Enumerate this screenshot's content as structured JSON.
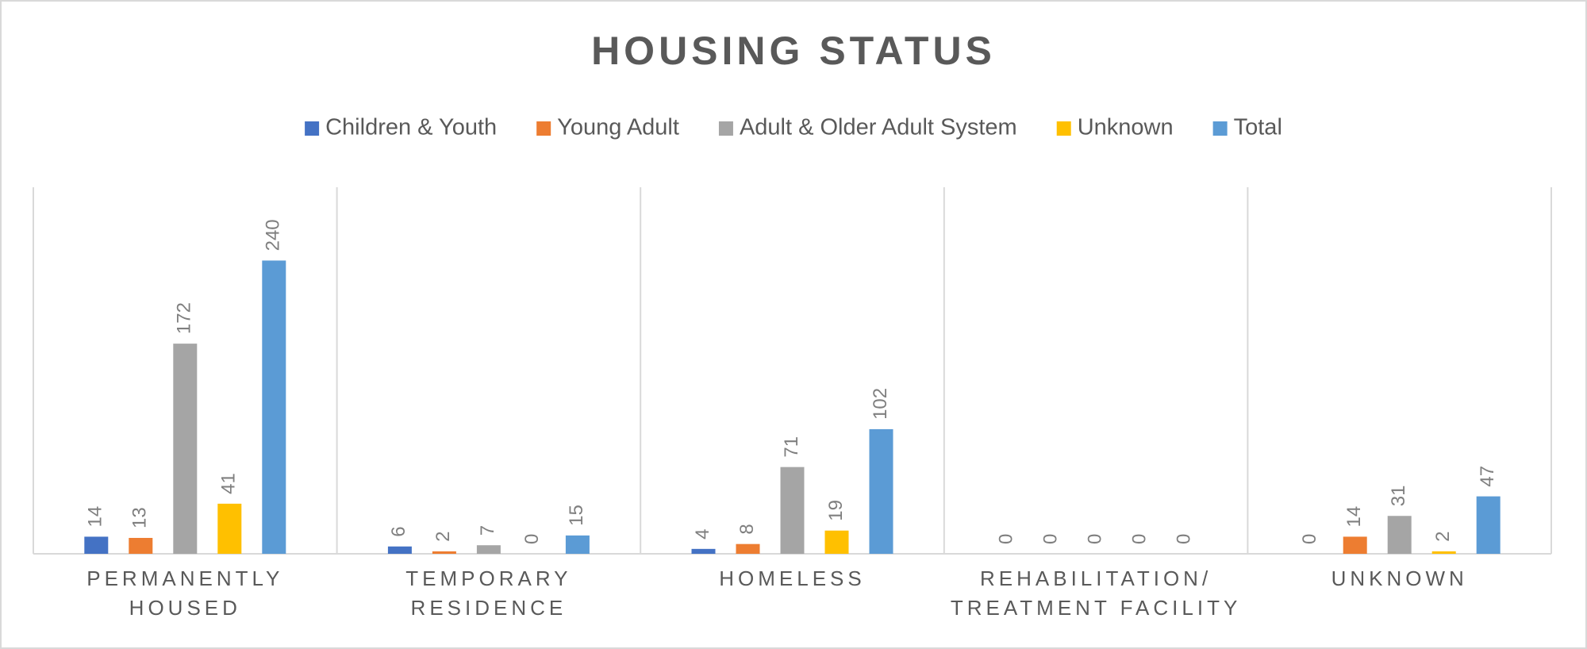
{
  "chart_data": {
    "type": "bar",
    "title": "HOUSING STATUS",
    "categories": [
      "PERMANENTLY HOUSED",
      "TEMPORARY RESIDENCE",
      "HOMELESS",
      "REHABILITATION/ TREATMENT FACILITY",
      "UNKNOWN"
    ],
    "series": [
      {
        "name": "Children & Youth",
        "color": "#4472c4",
        "values": [
          14,
          6,
          4,
          0,
          0
        ]
      },
      {
        "name": "Young Adult",
        "color": "#ed7d31",
        "values": [
          13,
          2,
          8,
          0,
          14
        ]
      },
      {
        "name": "Adult & Older Adult System",
        "color": "#a5a5a5",
        "values": [
          172,
          7,
          71,
          0,
          31
        ]
      },
      {
        "name": "Unknown",
        "color": "#ffc000",
        "values": [
          41,
          0,
          19,
          0,
          2
        ]
      },
      {
        "name": "Total",
        "color": "#5b9bd5",
        "values": [
          240,
          15,
          102,
          0,
          47
        ]
      }
    ],
    "ylim": [
      0,
      300
    ],
    "legend": "top",
    "data_labels": true
  }
}
